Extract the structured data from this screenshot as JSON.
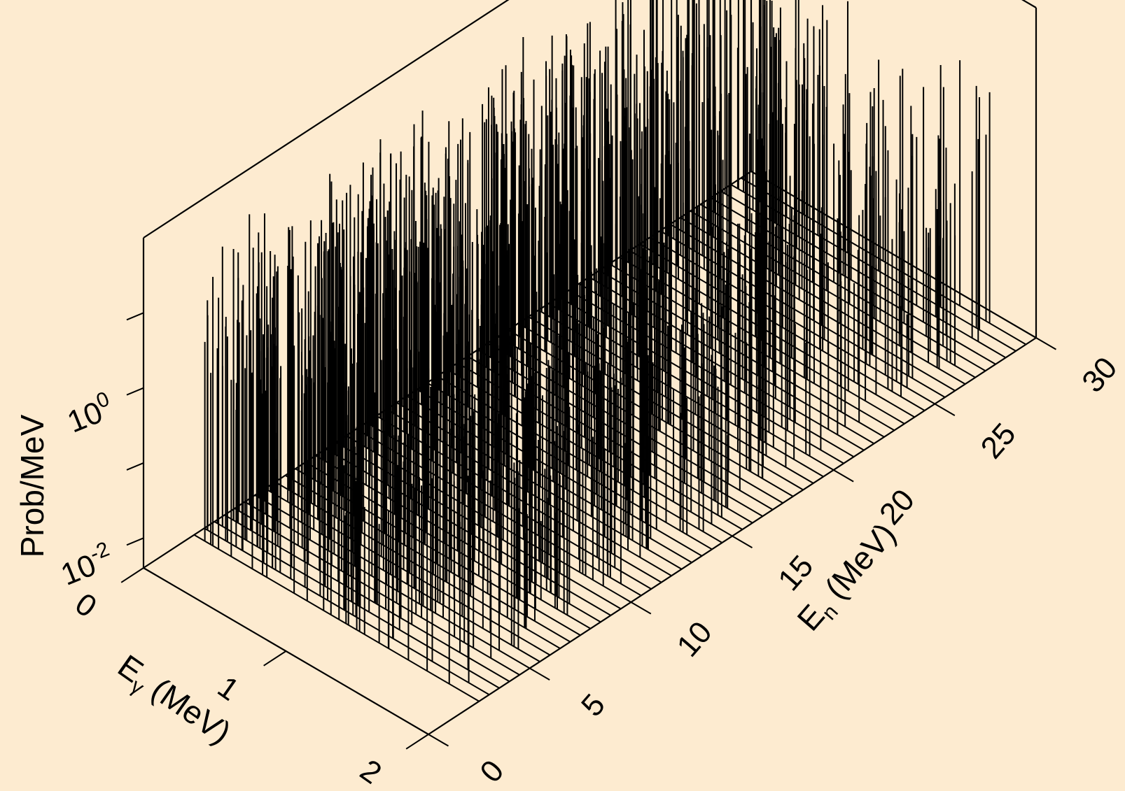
{
  "chart_data": {
    "type": "3d-spike",
    "title": "",
    "xlabel": "E",
    "xlabel_sub": "γ",
    "xlabel_unit": " (MeV)",
    "ylabel": "E",
    "ylabel_sub": "n",
    "ylabel_unit": " (MeV)",
    "zlabel": "Prob/MeV",
    "x_range": [
      0,
      2
    ],
    "y_range": [
      0,
      30
    ],
    "z_scale": "log",
    "z_range": [
      0.004,
      100
    ],
    "x_ticks": [
      "0",
      "1",
      "2"
    ],
    "y_ticks": [
      "0",
      "5",
      "10",
      "15",
      "20",
      "25",
      "30"
    ],
    "z_ticks": [
      {
        "base": "10",
        "exp": "-2"
      },
      {
        "base": "10",
        "exp": "0"
      }
    ],
    "en_bins": [
      2.5,
      3.0,
      3.5,
      4.0,
      4.5,
      5.0,
      5.5,
      6.0,
      6.5,
      7.0,
      7.5,
      8.0,
      8.5,
      9.0,
      9.5,
      10.0,
      10.5,
      11.0,
      11.5,
      12.0,
      12.5,
      13.0,
      13.5,
      14.0,
      14.5,
      15.0,
      15.5,
      16.0,
      16.5,
      17.0,
      17.5,
      18.0,
      18.5,
      19.0,
      19.5,
      20.0,
      20.5,
      21.0,
      21.5,
      22.0,
      22.5,
      23.0,
      23.5,
      24.0,
      24.5,
      25.0,
      25.5,
      26.0,
      26.5,
      27.0,
      27.5,
      28.0,
      28.5,
      29.0,
      29.5
    ],
    "egamma_lines_per_bin": 30,
    "value_description": "Discrete gamma lines (Eγ between 0 and 2 MeV) for each En bin; peak probabilities mostly between 0.1 and 30 per MeV"
  }
}
